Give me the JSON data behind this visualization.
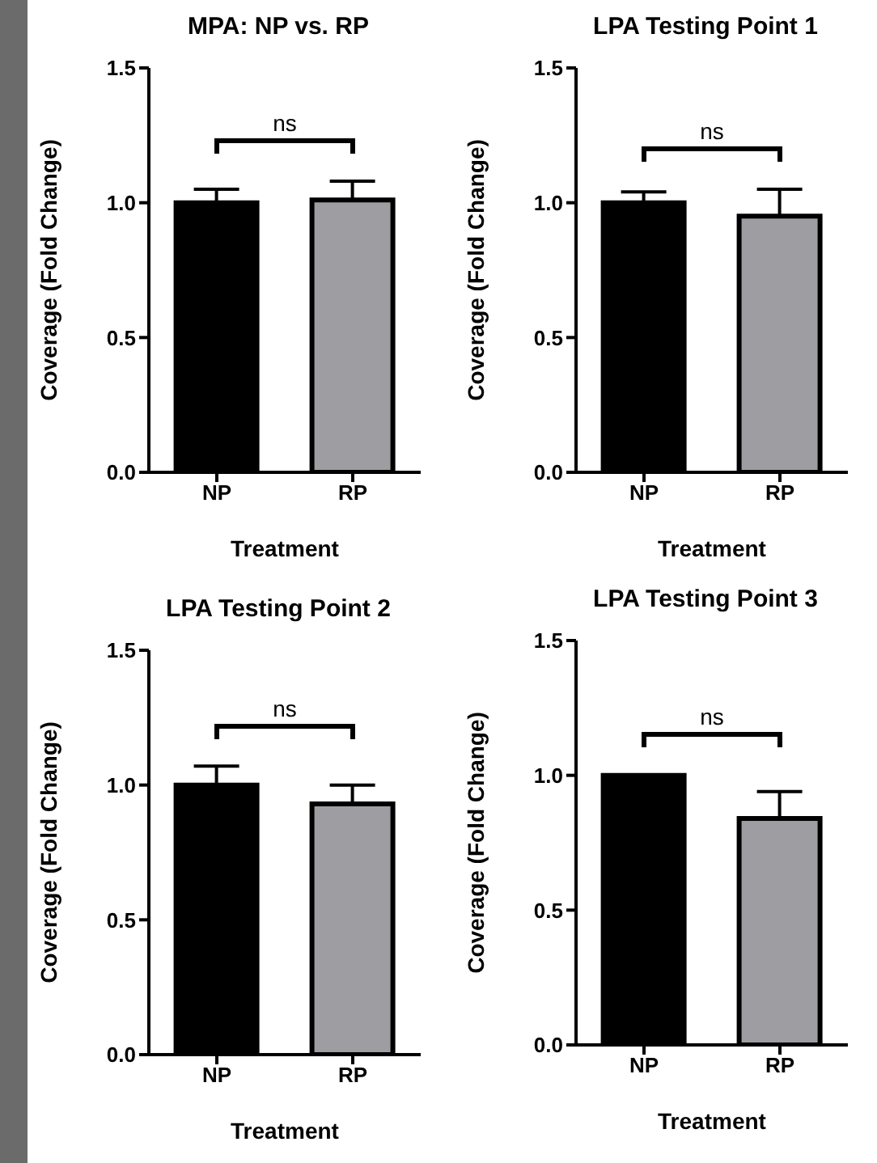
{
  "chart_data": [
    {
      "type": "bar",
      "title": "MPA: NP vs. RP",
      "ylabel": "Coverage (Fold Change)",
      "xlabel": "Treatment",
      "categories": [
        "NP",
        "RP"
      ],
      "values": [
        1.0,
        1.01
      ],
      "colors": [
        "#000000",
        "#9d9da2"
      ],
      "errors": [
        [
          1.0,
          1.05
        ],
        [
          1.01,
          1.08
        ]
      ],
      "ylim": [
        0,
        1.5
      ],
      "yticks": [
        {
          "value": 0,
          "label": "0.0"
        },
        {
          "value": 0.5,
          "label": "0.5"
        },
        {
          "value": 1,
          "label": "1.0"
        },
        {
          "value": 1.5,
          "label": "1.5"
        }
      ],
      "annotations": [
        "ns"
      ]
    },
    {
      "type": "bar",
      "title": "LPA Testing Point 1",
      "ylabel": "Coverage (Fold Change)",
      "xlabel": "Treatment",
      "categories": [
        "NP",
        "RP"
      ],
      "values": [
        1.0,
        0.95
      ],
      "colors": [
        "#000000",
        "#9d9da2"
      ],
      "errors": [
        [
          1.0,
          1.04
        ],
        [
          0.95,
          1.05
        ]
      ],
      "ylim": [
        0,
        1.5
      ],
      "yticks": [
        {
          "value": 0,
          "label": "0.0"
        },
        {
          "value": 0.5,
          "label": "0.5"
        },
        {
          "value": 1,
          "label": "1.0"
        },
        {
          "value": 1.5,
          "label": "1.5"
        }
      ],
      "annotations": [
        "ns"
      ]
    },
    {
      "type": "bar",
      "title": "LPA Testing Point 2",
      "ylabel": "Coverage (Fold Change)",
      "xlabel": "Treatment",
      "categories": [
        "NP",
        "RP"
      ],
      "values": [
        1.0,
        0.93
      ],
      "colors": [
        "#000000",
        "#9d9da2"
      ],
      "errors": [
        [
          1.0,
          1.07
        ],
        [
          0.93,
          1.0
        ]
      ],
      "ylim": [
        0,
        1.5
      ],
      "yticks": [
        {
          "value": 0,
          "label": "0.0"
        },
        {
          "value": 0.5,
          "label": "0.5"
        },
        {
          "value": 1,
          "label": "1.0"
        },
        {
          "value": 1.5,
          "label": "1.5"
        }
      ],
      "annotations": [
        "ns"
      ]
    },
    {
      "type": "bar",
      "title": "LPA Testing Point 3",
      "ylabel": "Coverage (Fold Change)",
      "xlabel": "Treatment",
      "categories": [
        "NP",
        "RP"
      ],
      "values": [
        1.0,
        0.84
      ],
      "colors": [
        "#000000",
        "#9d9da2"
      ],
      "errors": [
        [
          1.0,
          1.0
        ],
        [
          0.84,
          0.94
        ]
      ],
      "ylim": [
        0,
        1.5
      ],
      "yticks": [
        {
          "value": 0,
          "label": "0.0"
        },
        {
          "value": 0.5,
          "label": "0.5"
        },
        {
          "value": 1,
          "label": "1.0"
        },
        {
          "value": 1.5,
          "label": "1.5"
        }
      ],
      "annotations": [
        "ns"
      ]
    }
  ]
}
